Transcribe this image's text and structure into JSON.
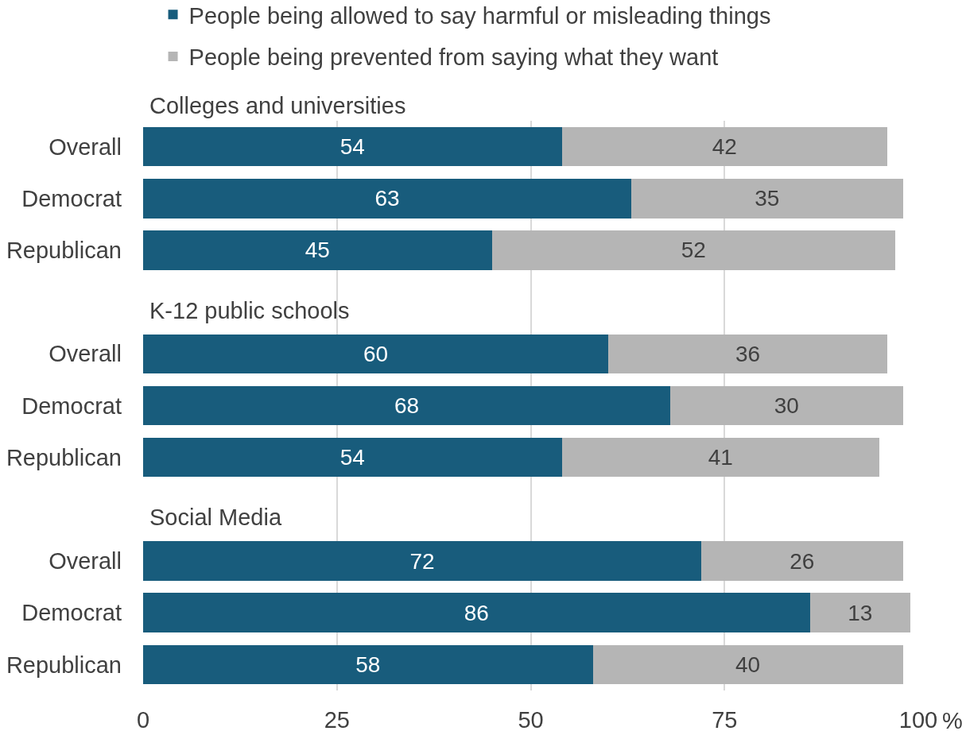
{
  "chart_data": [
    {
      "type": "bar",
      "orientation": "horizontal",
      "stacked": true,
      "title": "Colleges and universities",
      "categories": [
        "Overall",
        "Democrat",
        "Republican"
      ],
      "series": [
        {
          "name": "People being allowed to say harmful or misleading things",
          "color": "#185c7c",
          "values": [
            54,
            63,
            45
          ]
        },
        {
          "name": "People being prevented from saying what they want",
          "color": "#b5b5b5",
          "values": [
            42,
            35,
            52
          ]
        }
      ],
      "xlim": [
        0,
        100
      ],
      "xticks": [
        0,
        25,
        50,
        75,
        100
      ],
      "tick_labels": "y",
      "grid": "x",
      "data_labels": true,
      "legend": "top"
    },
    {
      "type": "bar",
      "orientation": "horizontal",
      "stacked": true,
      "title": "K-12 public schools",
      "categories": [
        "Overall",
        "Democrat",
        "Republican"
      ],
      "series": [
        {
          "color": "#185c7c",
          "values": [
            60,
            68,
            54
          ]
        },
        {
          "color": "#b5b5b5",
          "values": [
            36,
            30,
            41
          ]
        }
      ],
      "xlim": [
        0,
        100
      ],
      "xticks": [
        0,
        25,
        50,
        75,
        100
      ],
      "tick_labels": "y",
      "grid": "x",
      "data_labels": true
    },
    {
      "type": "bar",
      "orientation": "horizontal",
      "stacked": true,
      "title": "Social Media",
      "categories": [
        "Overall",
        "Democrat",
        "Republican"
      ],
      "series": [
        {
          "color": "#185c7c",
          "values": [
            72,
            86,
            58
          ]
        },
        {
          "color": "#b5b5b5",
          "values": [
            26,
            13,
            40
          ]
        }
      ],
      "xlim": [
        0,
        100
      ],
      "xticks": [
        0,
        25,
        50,
        75,
        100
      ],
      "xlabel": "%",
      "grid": "x",
      "data_labels": true
    }
  ]
}
